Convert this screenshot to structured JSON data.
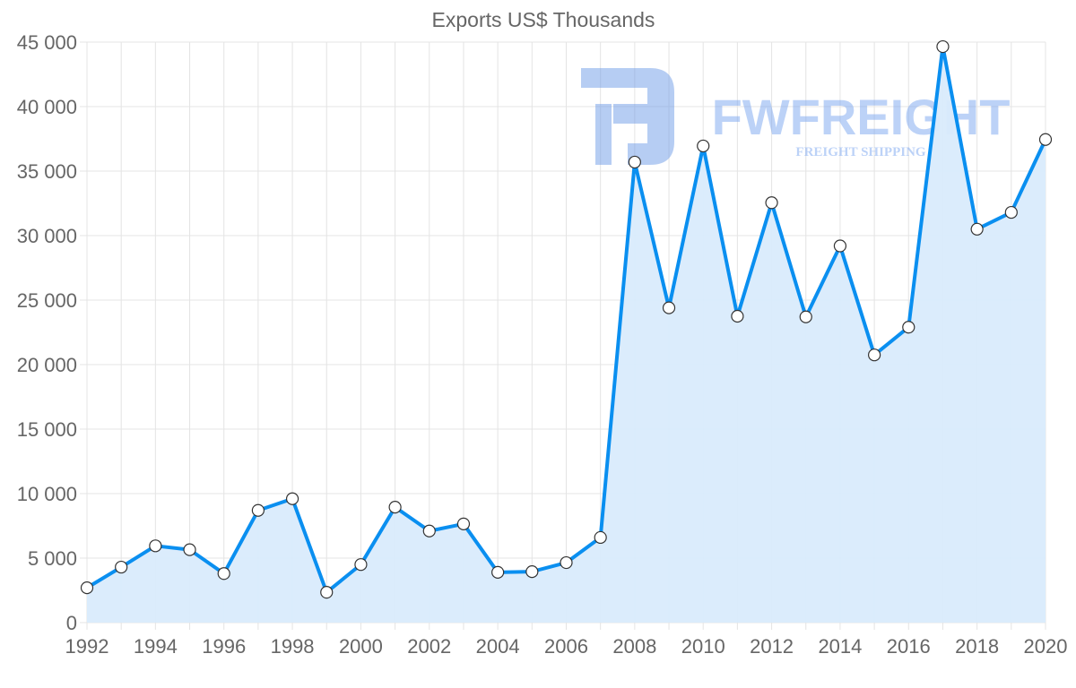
{
  "chart_data": {
    "type": "area",
    "title": "Exports US$ Thousands",
    "xlabel": "",
    "ylabel": "",
    "x": [
      1992,
      1993,
      1994,
      1995,
      1996,
      1997,
      1998,
      1999,
      2000,
      2001,
      2002,
      2003,
      2004,
      2005,
      2006,
      2007,
      2008,
      2009,
      2010,
      2011,
      2012,
      2013,
      2014,
      2015,
      2016,
      2017,
      2018,
      2019,
      2020
    ],
    "series": [
      {
        "name": "Exports US$ Thousands",
        "values": [
          2700,
          4300,
          5950,
          5650,
          3800,
          8700,
          9600,
          2350,
          4500,
          8950,
          7100,
          7650,
          3900,
          3950,
          4650,
          6600,
          35700,
          24400,
          36950,
          23750,
          32550,
          23700,
          29200,
          20750,
          22900,
          44650,
          30500,
          31800,
          37450
        ]
      }
    ],
    "xlim": [
      1992,
      2020
    ],
    "ylim": [
      0,
      45000
    ],
    "x_tick_labels": [
      "1992",
      "1994",
      "1996",
      "1998",
      "2000",
      "2002",
      "2004",
      "2006",
      "2008",
      "2010",
      "2012",
      "2014",
      "2016",
      "2018",
      "2020"
    ],
    "y_tick_labels": [
      "0",
      "5 000",
      "10 000",
      "15 000",
      "20 000",
      "25 000",
      "30 000",
      "35 000",
      "40 000",
      "45 000"
    ],
    "y_ticks": [
      0,
      5000,
      10000,
      15000,
      20000,
      25000,
      30000,
      35000,
      40000,
      45000
    ],
    "grid": true,
    "colors": {
      "line": "#0a8ff0",
      "fill": "#d9ebfc",
      "grid": "#e4e4e4",
      "watermark": "#6e9be8"
    }
  },
  "watermark": {
    "brand": "FWFREIGHT",
    "tagline": "FREIGHT SHIPPING"
  }
}
